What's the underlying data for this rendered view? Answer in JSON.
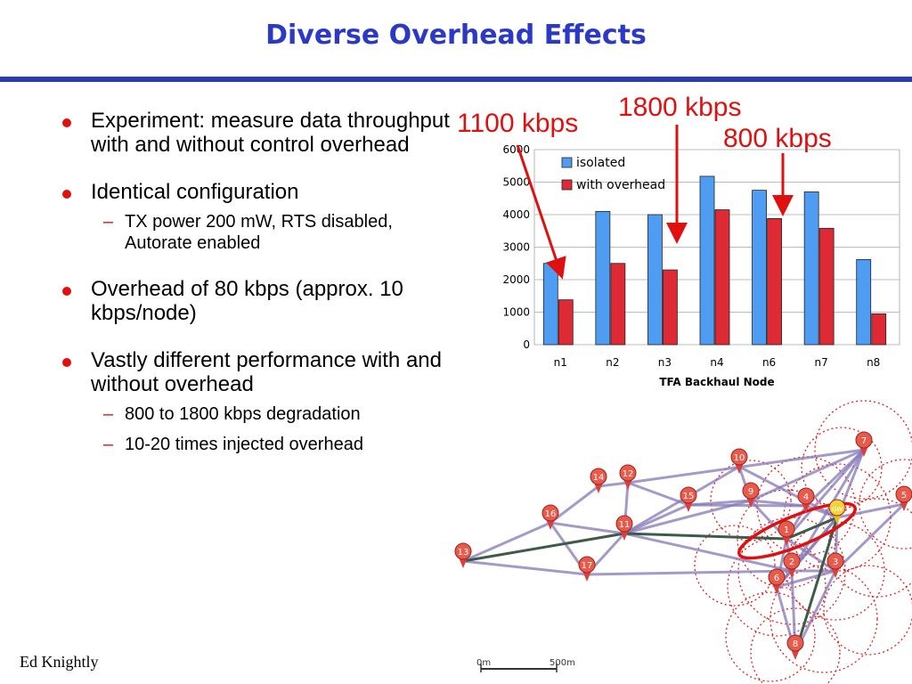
{
  "title": "Diverse Overhead Effects",
  "bullets": [
    {
      "text": "Experiment: measure data throughput with and without control overhead",
      "subs": []
    },
    {
      "text": "Identical configuration",
      "subs": [
        "TX power 200 mW, RTS disabled, Autorate enabled"
      ]
    },
    {
      "text": "Overhead of 80 kbps (approx. 10 kbps/node)",
      "subs": []
    },
    {
      "text": "Vastly different performance with and without overhead",
      "subs": [
        "800 to 1800 kbps degradation",
        "10-20 times injected overhead"
      ]
    }
  ],
  "annotations": [
    "1100 kbps",
    "1800 kbps",
    "800 kbps"
  ],
  "footer": "Ed Knightly",
  "chart_data": {
    "type": "bar",
    "categories": [
      "n1",
      "n2",
      "n3",
      "n4",
      "n6",
      "n7",
      "n8"
    ],
    "series": [
      {
        "name": "isolated",
        "values": [
          2500,
          4100,
          4000,
          5180,
          4750,
          4700,
          2620
        ],
        "color": "#4f9df2"
      },
      {
        "name": "with overhead",
        "values": [
          1380,
          2500,
          2300,
          4150,
          3880,
          3580,
          950
        ],
        "color": "#dd2a35"
      }
    ],
    "xlabel": "TFA Backhaul Node",
    "ylabel": "",
    "ylim": [
      0,
      6000
    ],
    "yticks": [
      0,
      1000,
      2000,
      3000,
      4000,
      5000,
      6000
    ],
    "grid": true,
    "legend": "top-left"
  },
  "map": {
    "nodes": [
      "1",
      "2",
      "3",
      "4",
      "5",
      "6",
      "7",
      "8",
      "9",
      "10",
      "11",
      "12",
      "13",
      "14",
      "15",
      "16",
      "17",
      "GW"
    ],
    "scale_labels": [
      "0m",
      "500m"
    ]
  }
}
